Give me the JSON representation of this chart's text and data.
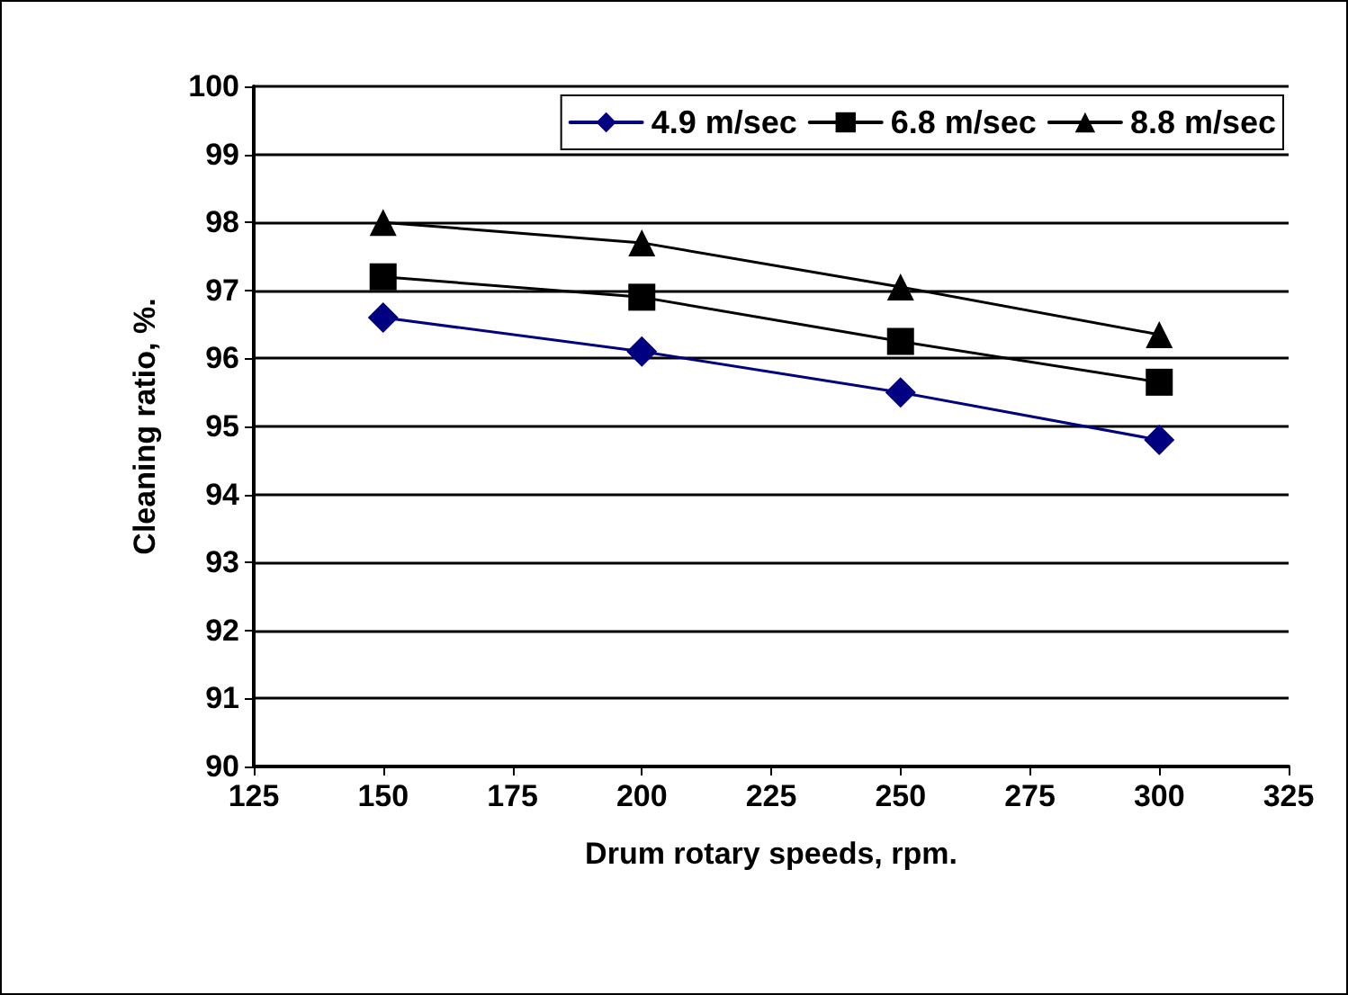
{
  "chart_data": {
    "type": "line",
    "xlabel": "Drum rotary speeds, rpm.",
    "ylabel": "Cleaning ratio, %.",
    "x": [
      150,
      200,
      250,
      300
    ],
    "series": [
      {
        "name": "4.9 m/sec",
        "color": "#000080",
        "marker": "diamond",
        "values": [
          96.6,
          96.1,
          95.5,
          94.8
        ]
      },
      {
        "name": "6.8 m/sec",
        "color": "#000000",
        "marker": "square",
        "values": [
          97.2,
          96.9,
          96.25,
          95.65
        ]
      },
      {
        "name": "8.8 m/sec",
        "color": "#000000",
        "marker": "triangle",
        "values": [
          98.0,
          97.7,
          97.05,
          96.35
        ]
      }
    ],
    "xlim": [
      125,
      325
    ],
    "xticks": [
      125,
      150,
      175,
      200,
      225,
      250,
      275,
      300,
      325
    ],
    "ylim": [
      90,
      100
    ],
    "yticks": [
      90,
      91,
      92,
      93,
      94,
      95,
      96,
      97,
      98,
      99,
      100
    ],
    "grid": "y",
    "legend": "top right",
    "line_style": "solid"
  }
}
